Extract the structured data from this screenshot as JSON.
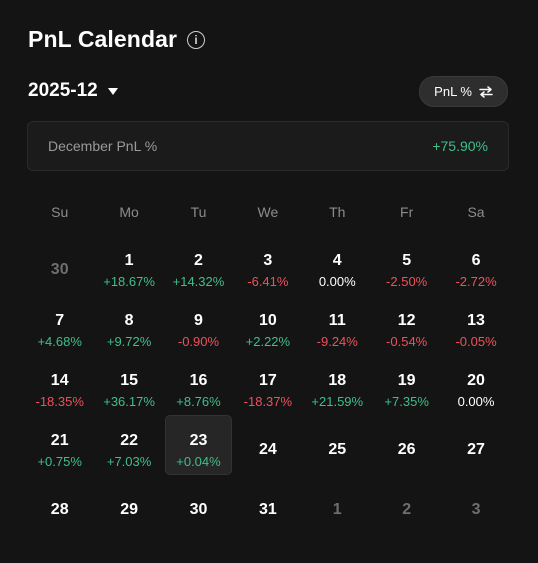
{
  "title": "PnL Calendar",
  "month_selector": {
    "value": "2025-12"
  },
  "toggle": {
    "label": "PnL %"
  },
  "summary": {
    "label": "December PnL %",
    "value": "+75.90%"
  },
  "colors": {
    "positive": "#3fbf8a",
    "negative": "#f0505a",
    "background": "#141414"
  },
  "weekdays": [
    "Su",
    "Mo",
    "Tu",
    "We",
    "Th",
    "Fr",
    "Sa"
  ],
  "weeks": [
    [
      {
        "day": "30",
        "pnl": "",
        "muted": true
      },
      {
        "day": "1",
        "pnl": "+18.67%"
      },
      {
        "day": "2",
        "pnl": "+14.32%"
      },
      {
        "day": "3",
        "pnl": "-6.41%"
      },
      {
        "day": "4",
        "pnl": "0.00%"
      },
      {
        "day": "5",
        "pnl": "-2.50%"
      },
      {
        "day": "6",
        "pnl": "-2.72%"
      }
    ],
    [
      {
        "day": "7",
        "pnl": "+4.68%"
      },
      {
        "day": "8",
        "pnl": "+9.72%"
      },
      {
        "day": "9",
        "pnl": "-0.90%"
      },
      {
        "day": "10",
        "pnl": "+2.22%"
      },
      {
        "day": "11",
        "pnl": "-9.24%"
      },
      {
        "day": "12",
        "pnl": "-0.54%"
      },
      {
        "day": "13",
        "pnl": "-0.05%"
      }
    ],
    [
      {
        "day": "14",
        "pnl": "-18.35%"
      },
      {
        "day": "15",
        "pnl": "+36.17%"
      },
      {
        "day": "16",
        "pnl": "+8.76%"
      },
      {
        "day": "17",
        "pnl": "-18.37%"
      },
      {
        "day": "18",
        "pnl": "+21.59%"
      },
      {
        "day": "19",
        "pnl": "+7.35%"
      },
      {
        "day": "20",
        "pnl": "0.00%"
      }
    ],
    [
      {
        "day": "21",
        "pnl": "+0.75%"
      },
      {
        "day": "22",
        "pnl": "+7.03%"
      },
      {
        "day": "23",
        "pnl": "+0.04%",
        "selected": true
      },
      {
        "day": "24",
        "pnl": ""
      },
      {
        "day": "25",
        "pnl": ""
      },
      {
        "day": "26",
        "pnl": ""
      },
      {
        "day": "27",
        "pnl": ""
      }
    ],
    [
      {
        "day": "28",
        "pnl": ""
      },
      {
        "day": "29",
        "pnl": ""
      },
      {
        "day": "30",
        "pnl": ""
      },
      {
        "day": "31",
        "pnl": ""
      },
      {
        "day": "1",
        "pnl": "",
        "muted": true
      },
      {
        "day": "2",
        "pnl": "",
        "muted": true
      },
      {
        "day": "3",
        "pnl": "",
        "muted": true
      }
    ]
  ]
}
